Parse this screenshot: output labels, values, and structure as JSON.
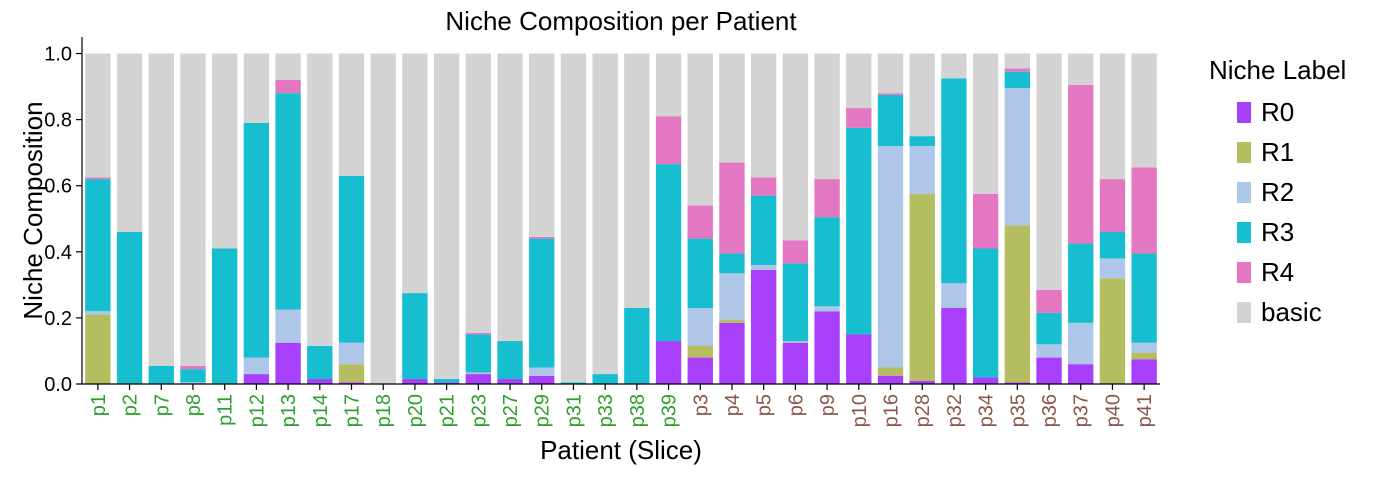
{
  "chart_data": {
    "type": "bar",
    "stacked": true,
    "title": "Niche Composition per Patient",
    "xlabel": "Patient (Slice)",
    "ylabel": "Niche Composition",
    "ylim": [
      0,
      1.05
    ],
    "yticks": [
      "0.0",
      "0.2",
      "0.4",
      "0.6",
      "0.8",
      "1.0"
    ],
    "ytick_values": [
      0.0,
      0.2,
      0.4,
      0.6,
      0.8,
      1.0
    ],
    "categories": [
      "p1",
      "p2",
      "p7",
      "p8",
      "p11",
      "p12",
      "p13",
      "p14",
      "p17",
      "p18",
      "p20",
      "p21",
      "p23",
      "p27",
      "p29",
      "p31",
      "p33",
      "p38",
      "p39",
      "p3",
      "p4",
      "p5",
      "p6",
      "p9",
      "p10",
      "p16",
      "p28",
      "p32",
      "p34",
      "p35",
      "p36",
      "p37",
      "p40",
      "p41"
    ],
    "category_colors": [
      "#2ca02c",
      "#2ca02c",
      "#2ca02c",
      "#2ca02c",
      "#2ca02c",
      "#2ca02c",
      "#2ca02c",
      "#2ca02c",
      "#2ca02c",
      "#2ca02c",
      "#2ca02c",
      "#2ca02c",
      "#2ca02c",
      "#2ca02c",
      "#2ca02c",
      "#2ca02c",
      "#2ca02c",
      "#2ca02c",
      "#2ca02c",
      "#8c564b",
      "#8c564b",
      "#8c564b",
      "#8c564b",
      "#8c564b",
      "#8c564b",
      "#8c564b",
      "#8c564b",
      "#8c564b",
      "#8c564b",
      "#8c564b",
      "#8c564b",
      "#8c564b",
      "#8c564b",
      "#8c564b"
    ],
    "legend_title": "Niche Label",
    "legend_position": "right",
    "grid": false,
    "series": [
      {
        "name": "R0",
        "color": "#a83ffb",
        "values": [
          0,
          0,
          0,
          0,
          0,
          0.03,
          0.125,
          0.015,
          0.005,
          0,
          0.015,
          0.005,
          0.03,
          0.015,
          0.025,
          0,
          0,
          0,
          0.13,
          0.08,
          0.185,
          0.345,
          0.125,
          0.22,
          0.15,
          0.025,
          0.01,
          0.23,
          0.02,
          0.005,
          0.08,
          0.06,
          0,
          0.075
        ]
      },
      {
        "name": "R1",
        "color": "#b5bd61",
        "values": [
          0.21,
          0,
          0,
          0,
          0,
          0,
          0,
          0,
          0.055,
          0,
          0,
          0,
          0,
          0,
          0,
          0,
          0,
          0,
          0,
          0.035,
          0.01,
          0,
          0,
          0,
          0,
          0.025,
          0.565,
          0,
          0,
          0.475,
          0,
          0,
          0.32,
          0.02
        ]
      },
      {
        "name": "R2",
        "color": "#aec7e8",
        "values": [
          0.01,
          0,
          0,
          0.005,
          0,
          0.05,
          0.1,
          0,
          0.065,
          0,
          0,
          0,
          0.005,
          0,
          0.025,
          0,
          0,
          0,
          0,
          0.115,
          0.14,
          0.015,
          0.005,
          0.015,
          0,
          0.67,
          0.145,
          0.075,
          0,
          0.415,
          0.04,
          0.125,
          0.06,
          0.03
        ]
      },
      {
        "name": "R3",
        "color": "#17becf",
        "values": [
          0.4,
          0.46,
          0.055,
          0.04,
          0.41,
          0.71,
          0.655,
          0.1,
          0.505,
          0,
          0.26,
          0.01,
          0.115,
          0.115,
          0.39,
          0.005,
          0.03,
          0.23,
          0.535,
          0.21,
          0.06,
          0.21,
          0.235,
          0.27,
          0.625,
          0.155,
          0.03,
          0.62,
          0.39,
          0.05,
          0.095,
          0.24,
          0.08,
          0.27
        ]
      },
      {
        "name": "R4",
        "color": "#e377c2",
        "values": [
          0.005,
          0,
          0,
          0.01,
          0,
          0,
          0.04,
          0,
          0,
          0,
          0,
          0,
          0.005,
          0,
          0.005,
          0,
          0,
          0,
          0.145,
          0.1,
          0.275,
          0.055,
          0.07,
          0.115,
          0.06,
          0.005,
          0,
          0,
          0.165,
          0.01,
          0.07,
          0.48,
          0.16,
          0.26
        ]
      },
      {
        "name": "basic",
        "color": "#d3d3d3",
        "values": [
          0.375,
          0.54,
          0.945,
          0.945,
          0.59,
          0.21,
          0.08,
          0.885,
          0.37,
          1.0,
          0.725,
          0.985,
          0.845,
          0.87,
          0.555,
          0.995,
          0.97,
          0.77,
          0.19,
          0.46,
          0.33,
          0.375,
          0.565,
          0.38,
          0.165,
          0.12,
          0.25,
          0.075,
          0.425,
          0.045,
          0.715,
          0.095,
          0.38,
          0.345
        ]
      }
    ]
  }
}
